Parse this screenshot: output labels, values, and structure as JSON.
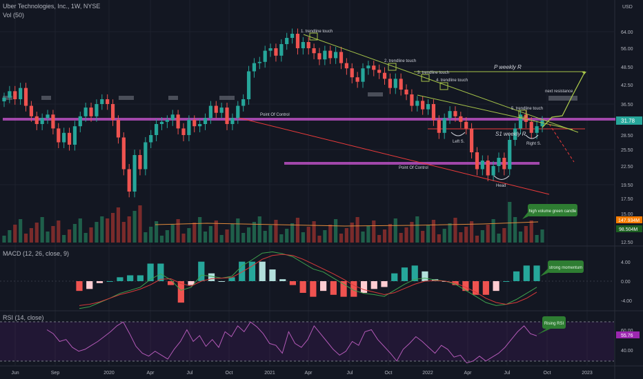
{
  "header": {
    "symbol_line": "Uber Technologies, Inc., 1W, NYSE",
    "volume_label": "Vol (50)",
    "macd_label": "MACD (12, 26, close, 9)",
    "rsi_label": "RSI (14, close)",
    "currency": "USD"
  },
  "colors": {
    "background": "#131722",
    "up": "#26a69a",
    "down": "#ef5350",
    "volume_up": "#1f5f4a",
    "volume_down": "#7a2b2b",
    "trendline": "#a8c64a",
    "poc": "#d158d8",
    "support": "#ef3b3b",
    "macd_line": "#3ea34f",
    "signal_line": "#d83a3a",
    "rsi_line": "#b45ab8",
    "callout": "#2e7d32"
  },
  "chart_data": {
    "type": "candlestick",
    "price_axis": {
      "ticks": [
        "64.00",
        "56.00",
        "48.50",
        "42.50",
        "36.50",
        "31.78",
        "28.50",
        "25.50",
        "22.50",
        "19.50",
        "17.50",
        "15.00",
        "147.934M",
        "98.504M",
        "12.50"
      ],
      "last_price": "31.78",
      "range": [
        12.5,
        72
      ]
    },
    "time_axis": [
      "Jun",
      "Sep",
      "2020",
      "Apr",
      "Jul",
      "Oct",
      "2021",
      "Apr",
      "Jul",
      "Oct",
      "2022",
      "Apr",
      "Jul",
      "Oct",
      "2023"
    ],
    "price_series": [
      38.5,
      40.5,
      38.0,
      41.5,
      36.0,
      33.0,
      31.0,
      32.5,
      33.5,
      30.0,
      27.0,
      29.0,
      26.5,
      30.5,
      33.0,
      35.5,
      33.0,
      36.5,
      38.0,
      36.5,
      32.0,
      28.0,
      22.0,
      18.5,
      24.5,
      22.0,
      27.0,
      28.5,
      31.0,
      31.5,
      32.0,
      33.5,
      30.0,
      28.5,
      32.0,
      30.5,
      31.0,
      32.5,
      36.0,
      34.0,
      35.5,
      31.0,
      32.5,
      36.0,
      38.0,
      47.0,
      50.0,
      50.5,
      55.0,
      56.0,
      53.0,
      58.0,
      61.0,
      63.0,
      56.0,
      59.0,
      56.0,
      54.0,
      51.5,
      55.0,
      52.0,
      54.5,
      50.0,
      48.0,
      45.0,
      43.5,
      48.0,
      49.0,
      47.5,
      46.5,
      44.5,
      41.5,
      44.5,
      41.0,
      39.5,
      36.0,
      37.5,
      35.0,
      36.5,
      32.0,
      29.0,
      32.5,
      34.5,
      33.0,
      31.5,
      30.0,
      25.0,
      22.0,
      23.5,
      21.0,
      22.5,
      24.0,
      22.0,
      27.5,
      30.0,
      33.5,
      31.5,
      29.0,
      30.5,
      31.78
    ],
    "volume": {
      "label": "Vol (50)",
      "last_values": [
        "147.934M",
        "98.504M"
      ]
    },
    "macd": {
      "label": "MACD (12, 26, close, 9)",
      "ticks": [
        "4.00",
        "0.00",
        "-4.00"
      ],
      "range": [
        -5.2,
        5.2
      ],
      "macd_line": [
        -4.5,
        -4.2,
        -3.5,
        -2.8,
        -2.0,
        -1.5,
        -1.0,
        0.3,
        1.2,
        0.2,
        -1.5,
        -1.0,
        1.0,
        0.8,
        0.5,
        0.8,
        2.5,
        3.5,
        4.6,
        4.8,
        4.5,
        4.0,
        3.0,
        2.0,
        1.5,
        0.5,
        -0.5,
        -1.5,
        -2.0,
        -2.2,
        -2.5,
        -1.5,
        -0.5,
        0.3,
        0.5,
        0.2,
        0.0,
        -0.5,
        -1.5,
        -2.5,
        -3.5,
        -4.0,
        -3.8,
        -3.0,
        -2.0,
        -1.0
      ],
      "signal_line": [
        -4.0,
        -3.8,
        -3.4,
        -2.8,
        -2.2,
        -1.8,
        -1.3,
        -0.6,
        0.3,
        0.4,
        -0.4,
        -0.8,
        0.0,
        0.4,
        0.5,
        0.6,
        1.5,
        2.5,
        3.6,
        4.2,
        4.4,
        4.2,
        3.6,
        2.8,
        2.0,
        1.2,
        0.3,
        -0.7,
        -1.4,
        -1.8,
        -2.2,
        -1.9,
        -1.2,
        -0.5,
        0.0,
        0.1,
        0.0,
        -0.3,
        -1.0,
        -1.8,
        -2.8,
        -3.5,
        -3.8,
        -3.5,
        -2.8,
        -1.8
      ]
    },
    "rsi": {
      "label": "RSI (14, close)",
      "ticks": [
        "60.00",
        "55.76",
        "40.00"
      ],
      "last_value": "55.76",
      "range": [
        25,
        80
      ],
      "bands": [
        70,
        30
      ],
      "values": [
        62,
        58,
        50,
        52,
        44,
        40,
        42,
        46,
        50,
        55,
        60,
        66,
        70,
        58,
        45,
        38,
        35,
        40,
        36,
        32,
        42,
        50,
        62,
        50,
        56,
        45,
        52,
        44,
        60,
        55,
        66,
        60,
        70,
        65,
        58,
        48,
        46,
        38,
        60,
        48,
        44,
        52,
        66,
        58,
        50,
        42,
        36,
        40,
        50,
        46,
        60,
        62,
        52,
        45,
        38,
        30,
        42,
        48,
        55,
        50,
        44,
        38,
        46,
        42,
        34,
        36,
        28,
        30,
        35,
        30,
        34,
        38,
        44,
        52,
        60,
        66,
        58,
        55.76
      ]
    }
  },
  "annotations": {
    "touch1": "1. trendline touch",
    "touch2": "2. trendline touch",
    "touch3": "3. trendline touch",
    "touch4": "4. trendline touch",
    "touch5": "5. trendline touch",
    "p_weekly": "P weekly R",
    "s1_weekly": "S1 weekly R",
    "next_resistance": "next resistance",
    "poc_upper": "Point Of Control",
    "poc_lower": "Point Of Control",
    "left_shoulder": "Left S.",
    "right_shoulder": "Right S.",
    "head": "Head",
    "high_volume": "high volume green candle",
    "strong_momentum": "strong momentum",
    "rising_rsi": "Rising RSI"
  }
}
